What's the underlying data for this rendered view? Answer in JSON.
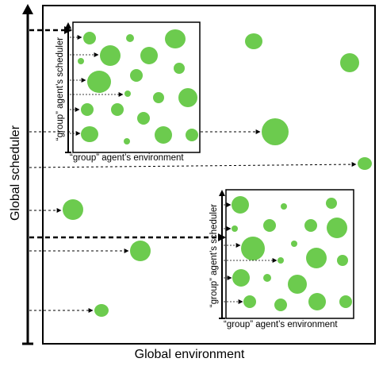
{
  "labels": {
    "global_environment": "Global environment",
    "global_scheduler": "Global scheduler",
    "group_environment": "“group” agent’s environment",
    "group_scheduler": "“group” agent’s scheduler"
  },
  "colors": {
    "agent_fill": "#6ccb4e",
    "line": "#000000",
    "background": "#ffffff"
  },
  "icons": {
    "agent": "green-circle-icon",
    "group_box": "nested-environment-box",
    "arrow": "dashed-arrow-icon"
  }
}
